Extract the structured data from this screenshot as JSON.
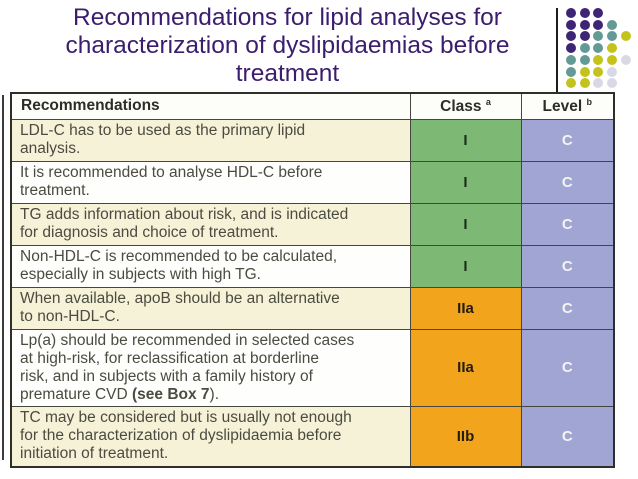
{
  "title": {
    "lines": [
      "Recommendations for lipid analyses for",
      "characterization of dyslipidaemias before",
      "treatment"
    ]
  },
  "table": {
    "header": {
      "recommendations": "Recommendations",
      "class_label": "Class",
      "class_sup": "a",
      "level_label": "Level",
      "level_sup": "b"
    },
    "rows": [
      {
        "lines": [
          "LDL-C has to be used as the primary lipid",
          "analysis."
        ],
        "bold": "",
        "post": "",
        "class": "I",
        "level": "C"
      },
      {
        "lines": [
          "It is recommended to analyse HDL-C before",
          "treatment."
        ],
        "bold": "",
        "post": "",
        "class": "I",
        "level": "C"
      },
      {
        "lines": [
          "TG adds information about risk, and is indicated",
          "for diagnosis and choice of treatment."
        ],
        "bold": "",
        "post": "",
        "class": "I",
        "level": "C"
      },
      {
        "lines": [
          "Non-HDL-C is recommended to be calculated,",
          "especially in subjects with high TG."
        ],
        "bold": "",
        "post": "",
        "class": "I",
        "level": "C"
      },
      {
        "lines": [
          "When available, apoB should be an alternative",
          "to non-HDL-C."
        ],
        "bold": "",
        "post": "",
        "class": "IIa",
        "level": "C"
      },
      {
        "lines": [
          "Lp(a) should be recommended in selected cases",
          "at high-risk, for reclassification at borderline",
          "risk, and in subjects with a family history of",
          "premature CVD"
        ],
        "bold": " (see Box 7",
        "post": ").",
        "class": "IIa",
        "level": "C"
      },
      {
        "lines": [
          "TC may be considered but is usually not enough",
          "for the characterization of dyslipidaemia before",
          "initiation of treatment."
        ],
        "bold": "",
        "post": "",
        "class": "IIb",
        "level": "C"
      }
    ]
  },
  "colors": {
    "title_text": "#3b1d6e",
    "class_green": "#7db974",
    "class_orange": "#f3a41d",
    "level_blue": "#a0a5d3",
    "row_cream": "#f5f2d8",
    "row_white": "#fefefc",
    "border": "#46463f"
  },
  "decoration": {
    "grid": [
      "PPP..",
      "PPPT.",
      "PPTTY",
      "PTTY.",
      "TTYYG",
      "TYYG.",
      "YYGG."
    ],
    "dot_colors": {
      "P": "#3f2375",
      "T": "#639a95",
      "Y": "#c4c31c",
      "G": "#d8d9e5"
    }
  }
}
